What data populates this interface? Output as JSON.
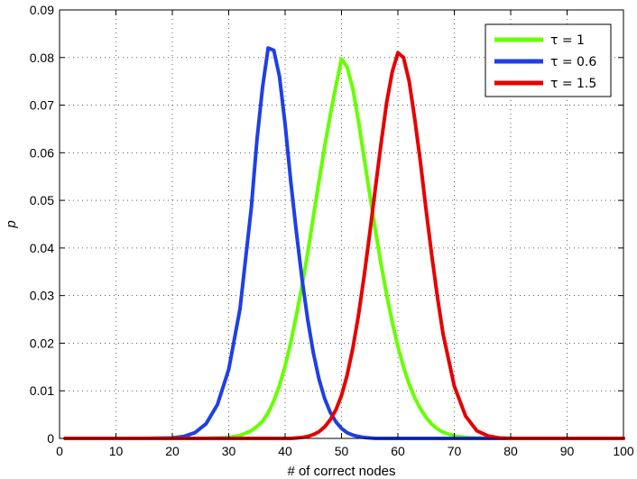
{
  "chart_data": {
    "type": "line",
    "title": "",
    "xlabel": "# of correct nodes",
    "ylabel": "p",
    "xlim": [
      0,
      100
    ],
    "ylim": [
      0,
      0.09
    ],
    "xticks": [
      0,
      10,
      20,
      30,
      40,
      50,
      60,
      70,
      80,
      90,
      100
    ],
    "yticks": [
      0,
      0.01,
      0.02,
      0.03,
      0.04,
      0.05,
      0.06,
      0.07,
      0.08,
      0.09
    ],
    "xtick_labels": [
      "0",
      "10",
      "20",
      "30",
      "40",
      "50",
      "60",
      "70",
      "80",
      "90",
      "100"
    ],
    "ytick_labels": [
      "0",
      "0.01",
      "0.02",
      "0.03",
      "0.04",
      "0.05",
      "0.06",
      "0.07",
      "0.08",
      "0.09"
    ],
    "grid": true,
    "legend_position": "top-right",
    "x": [
      1,
      5,
      10,
      15,
      20,
      22,
      24,
      26,
      28,
      30,
      32,
      34,
      35,
      36,
      37,
      38,
      39,
      40,
      41,
      42,
      43,
      44,
      45,
      46,
      47,
      48,
      49,
      50,
      51,
      52,
      53,
      54,
      55,
      56,
      57,
      58,
      59,
      60,
      61,
      62,
      63,
      64,
      65,
      66,
      67,
      68,
      70,
      72,
      74,
      76,
      78,
      80,
      85,
      90,
      95,
      100
    ],
    "series": [
      {
        "name": "τ = 1",
        "color": "#66ff00",
        "values": [
          0,
          0,
          0,
          0,
          0,
          0,
          0,
          0,
          0.0001,
          0.0002,
          0.0006,
          0.0016,
          0.0025,
          0.0036,
          0.0054,
          0.0079,
          0.0111,
          0.0152,
          0.0202,
          0.0259,
          0.0321,
          0.0389,
          0.0465,
          0.054,
          0.0612,
          0.0679,
          0.074,
          0.0797,
          0.078,
          0.0735,
          0.0667,
          0.059,
          0.0513,
          0.0438,
          0.0367,
          0.0302,
          0.0244,
          0.0193,
          0.015,
          0.0114,
          0.0085,
          0.0062,
          0.0044,
          0.003,
          0.002,
          0.0013,
          0.0005,
          0.0002,
          0.0001,
          0,
          0,
          0,
          0,
          0,
          0,
          0
        ]
      },
      {
        "name": "τ = 0.6",
        "color": "#1f3fe6",
        "values": [
          0,
          0,
          0,
          0,
          0.0001,
          0.0004,
          0.0012,
          0.0031,
          0.0071,
          0.0145,
          0.0272,
          0.0484,
          0.0626,
          0.0738,
          0.082,
          0.0815,
          0.076,
          0.066,
          0.054,
          0.0433,
          0.0335,
          0.025,
          0.018,
          0.0125,
          0.0084,
          0.0055,
          0.0035,
          0.0021,
          0.0012,
          0.0007,
          0.0004,
          0.0002,
          0.0001,
          0,
          0,
          0,
          0,
          0,
          0,
          0,
          0,
          0,
          0,
          0,
          0,
          0,
          0,
          0,
          0,
          0,
          0,
          0,
          0,
          0,
          0,
          0
        ]
      },
      {
        "name": "τ = 1.5",
        "color": "#e60000",
        "values": [
          0,
          0,
          0,
          0,
          0,
          0,
          0,
          0,
          0,
          0,
          0,
          0,
          0,
          0,
          0,
          0,
          0,
          0,
          0,
          0.0001,
          0.0002,
          0.0004,
          0.0008,
          0.0014,
          0.0024,
          0.0039,
          0.006,
          0.009,
          0.0133,
          0.0189,
          0.0258,
          0.034,
          0.043,
          0.0525,
          0.0618,
          0.0705,
          0.077,
          0.081,
          0.08,
          0.075,
          0.067,
          0.058,
          0.048,
          0.0385,
          0.0298,
          0.022,
          0.011,
          0.0047,
          0.0016,
          0.0005,
          0.0001,
          0,
          0,
          0,
          0,
          0
        ]
      }
    ]
  }
}
